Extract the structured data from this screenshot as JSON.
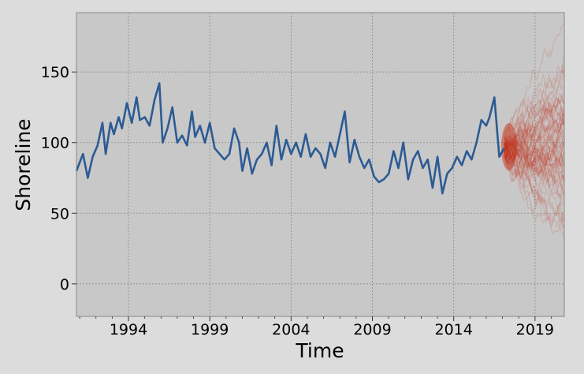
{
  "chart_data": {
    "type": "line",
    "title": "",
    "xlabel": "Time",
    "ylabel": "Shoreline",
    "xlim": [
      1990.8,
      2020.8
    ],
    "ylim": [
      -23,
      192
    ],
    "x_tick_labels": [
      "1994",
      "1999",
      "2004",
      "2009",
      "2014",
      "2019"
    ],
    "x_ticks": [
      1994,
      1999,
      2004,
      2009,
      2014,
      2019
    ],
    "y_tick_labels": [
      "0",
      "50",
      "100",
      "150"
    ],
    "y_ticks": [
      0,
      50,
      100,
      150
    ],
    "grid": true,
    "colors": {
      "figure_bg": "#dcdcdc",
      "plot_bg": "#c8c8c8",
      "observed_line": "#2c5b94",
      "forecast_paths": "#c42a10",
      "grid": "#8a8a8a"
    },
    "series": [
      {
        "role": "observed",
        "x": [
          1990.8,
          1991.2,
          1991.5,
          1991.8,
          1992.1,
          1992.4,
          1992.6,
          1992.9,
          1993.1,
          1993.4,
          1993.6,
          1993.9,
          1994.2,
          1994.5,
          1994.7,
          1995.0,
          1995.3,
          1995.6,
          1995.9,
          1996.1,
          1996.4,
          1996.7,
          1997.0,
          1997.3,
          1997.6,
          1997.9,
          1998.1,
          1998.4,
          1998.7,
          1999.0,
          1999.3,
          1999.6,
          1999.9,
          2000.2,
          2000.5,
          2000.8,
          2001.0,
          2001.3,
          2001.6,
          2001.9,
          2002.2,
          2002.5,
          2002.8,
          2003.1,
          2003.4,
          2003.7,
          2004.0,
          2004.3,
          2004.6,
          2004.9,
          2005.2,
          2005.5,
          2005.8,
          2006.1,
          2006.4,
          2006.7,
          2007.0,
          2007.3,
          2007.6,
          2007.9,
          2008.2,
          2008.5,
          2008.8,
          2009.1,
          2009.4,
          2009.7,
          2010.0,
          2010.3,
          2010.6,
          2010.9,
          2011.2,
          2011.5,
          2011.8,
          2012.1,
          2012.4,
          2012.7,
          2013.0,
          2013.3,
          2013.6,
          2013.9,
          2014.2,
          2014.5,
          2014.8,
          2015.1,
          2015.4,
          2015.7,
          2016.0,
          2016.2,
          2016.5,
          2016.8,
          2017.1
        ],
        "y": [
          80,
          92,
          75,
          90,
          98,
          114,
          92,
          114,
          106,
          118,
          110,
          128,
          114,
          132,
          116,
          118,
          112,
          130,
          142,
          100,
          110,
          125,
          100,
          105,
          98,
          122,
          104,
          112,
          100,
          114,
          96,
          92,
          88,
          92,
          110,
          100,
          80,
          96,
          78,
          88,
          92,
          100,
          84,
          112,
          88,
          102,
          92,
          100,
          90,
          106,
          90,
          96,
          92,
          82,
          100,
          90,
          106,
          122,
          86,
          102,
          90,
          82,
          88,
          76,
          72,
          74,
          78,
          94,
          82,
          100,
          74,
          88,
          94,
          82,
          88,
          68,
          90,
          64,
          78,
          82,
          90,
          84,
          94,
          88,
          100,
          116,
          112,
          118,
          132,
          90,
          96
        ]
      }
    ],
    "forecast": {
      "x_start": 2017.1,
      "x_end": 2020.8,
      "center": 97,
      "spread_range": [
        -15,
        185
      ]
    }
  }
}
